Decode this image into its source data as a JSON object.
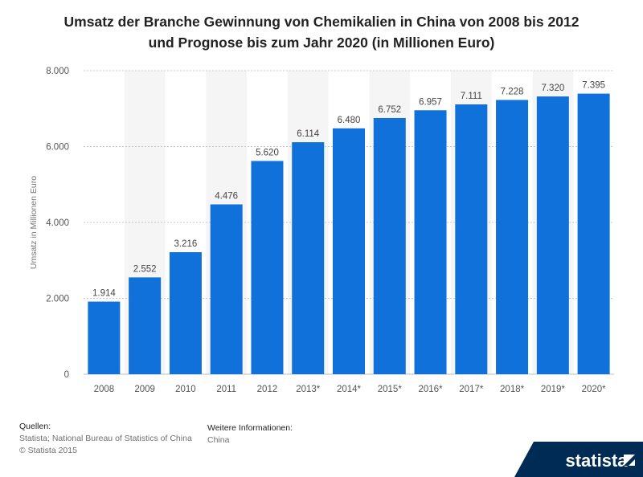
{
  "chart_data": {
    "type": "bar",
    "title_line1": "Umsatz der Branche Gewinnung von Chemikalien in China von 2008 bis 2012",
    "title_line2": "und Prognose bis zum Jahr 2020 (in Millionen Euro)",
    "xlabel": "",
    "ylabel": "Umsatz in Millionen Euro",
    "categories": [
      "2008",
      "2009",
      "2010",
      "2011",
      "2012",
      "2013*",
      "2014*",
      "2015*",
      "2016*",
      "2017*",
      "2018*",
      "2019*",
      "2020*"
    ],
    "values": [
      1914,
      2552,
      3216,
      4476,
      5620,
      6114,
      6480,
      6752,
      6957,
      7111,
      7228,
      7320,
      7395
    ],
    "value_labels": [
      "1.914",
      "2.552",
      "3.216",
      "4.476",
      "5.620",
      "6.114",
      "6.480",
      "6.752",
      "6.957",
      "7.111",
      "7.228",
      "7.320",
      "7.395"
    ],
    "yticks": [
      0,
      2000,
      4000,
      6000,
      8000
    ],
    "ytick_labels": [
      "0",
      "2.000",
      "4.000",
      "6.000",
      "8.000"
    ],
    "ylim": [
      0,
      8000
    ],
    "grid": true,
    "bar_color": "#0f71d9"
  },
  "footer": {
    "sources_heading": "Quellen:",
    "sources_text": "Statista; National Bureau of Statistics of China",
    "copyright": "© Statista 2015",
    "info_heading": "Weitere Informationen:",
    "info_text": "China"
  },
  "brand": {
    "name": "statista",
    "color": "#002b55",
    "icon": "statista-logo-icon"
  }
}
